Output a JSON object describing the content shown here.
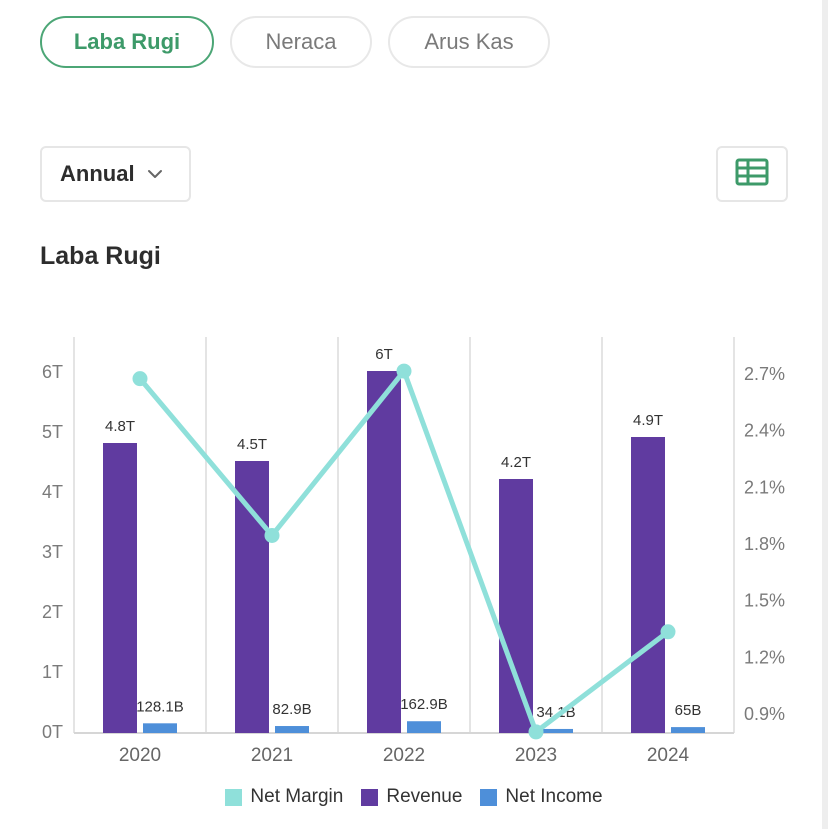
{
  "tabs": [
    {
      "label": "Laba Rugi",
      "active": true
    },
    {
      "label": "Neraca",
      "active": false
    },
    {
      "label": "Arus Kas",
      "active": false
    }
  ],
  "period_select": {
    "value": "Annual",
    "icon": "chevron-down-icon"
  },
  "table_button": {
    "icon": "table-icon"
  },
  "section_title": "Laba Rugi",
  "colors": {
    "accent": "#3d9a69",
    "revenue": "#603ba0",
    "net_income": "#4e8fd9",
    "net_margin": "#8fe0da"
  },
  "chart_data": {
    "type": "bar",
    "categories": [
      "2020",
      "2021",
      "2022",
      "2023",
      "2024"
    ],
    "series": [
      {
        "name": "Revenue",
        "type": "bar",
        "axis": "left",
        "values": [
          4.8,
          4.5,
          6.0,
          4.2,
          4.9
        ],
        "labels": [
          "4.8T",
          "4.5T",
          "6T",
          "4.2T",
          "4.9T"
        ]
      },
      {
        "name": "Net Income",
        "type": "bar",
        "axis": "left",
        "values": [
          0.1281,
          0.0829,
          0.1629,
          0.0341,
          0.065
        ],
        "labels": [
          "128.1B",
          "82.9B",
          "162.9B",
          "34.1B",
          "65B"
        ]
      },
      {
        "name": "Net Margin",
        "type": "line",
        "axis": "right",
        "values": [
          2.67,
          1.84,
          2.71,
          0.8,
          1.33
        ]
      }
    ],
    "left_axis": {
      "ylim": [
        0,
        6
      ],
      "ticks": [
        "0T",
        "1T",
        "2T",
        "3T",
        "4T",
        "5T",
        "6T"
      ]
    },
    "right_axis": {
      "ylim": [
        0.9,
        2.7
      ],
      "ticks": [
        "0.9%",
        "1.2%",
        "1.5%",
        "1.8%",
        "2.1%",
        "2.4%",
        "2.7%"
      ]
    },
    "legend": [
      "Net Margin",
      "Revenue",
      "Net Income"
    ],
    "legend_position": "bottom",
    "grid": "vertical"
  }
}
